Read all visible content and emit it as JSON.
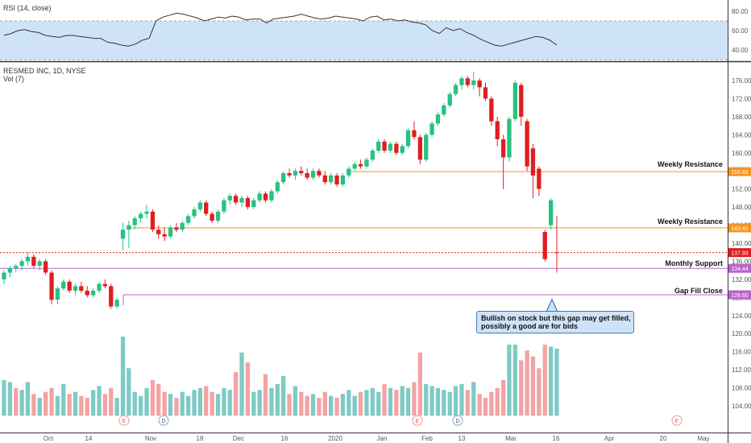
{
  "rsi_panel": {
    "title": "RSI (14, close)",
    "ticks": [
      "80.00",
      "60.00",
      "40.00"
    ],
    "tick_values": [
      80,
      60,
      40
    ],
    "ylim": [
      30,
      90
    ],
    "band": [
      30,
      70
    ],
    "band_color": "#cfe3f8",
    "line_color": "#333333",
    "values": [
      55,
      57,
      60,
      61,
      59,
      58,
      55,
      54,
      53,
      55,
      55,
      54,
      53,
      52,
      52,
      48,
      47,
      45,
      44,
      46,
      50,
      52,
      70,
      74,
      76,
      78,
      77,
      75,
      73,
      70,
      72,
      74,
      73,
      75,
      74,
      71,
      72,
      72,
      68,
      72,
      73,
      74,
      75,
      77,
      75,
      73,
      72,
      73,
      75,
      74,
      73,
      72,
      70,
      74,
      75,
      71,
      72,
      70,
      71,
      69,
      68,
      66,
      60,
      57,
      63,
      60,
      62,
      58,
      55,
      51,
      48,
      45,
      44,
      46,
      48,
      50,
      52,
      54,
      53,
      50,
      45
    ]
  },
  "main_panel": {
    "title": "RESMED INC, 1D, NYSE",
    "volume_label": "Vol (7)",
    "ticks": [
      "176.00",
      "172.00",
      "168.00",
      "164.00",
      "160.00",
      "156.00",
      "152.00",
      "148.00",
      "144.00",
      "140.00",
      "136.00",
      "132.00",
      "128.00",
      "124.00",
      "120.00",
      "116.00",
      "112.00",
      "108.00",
      "104.00"
    ],
    "tick_values": [
      176,
      172,
      168,
      164,
      160,
      156,
      152,
      148,
      144,
      140,
      136,
      132,
      128,
      124,
      120,
      116,
      112,
      108,
      104
    ],
    "ylim": [
      101.5,
      178.5
    ],
    "price_labels": [
      {
        "text": "155.85",
        "value": 155.85,
        "color": "#f7931e"
      },
      {
        "text": "143.40",
        "value": 143.4,
        "color": "#f7931e"
      },
      {
        "text": "137.93",
        "value": 137.93,
        "color": "#e21b1b"
      },
      {
        "text": "134.44",
        "value": 134.44,
        "color": "#b964c8"
      },
      {
        "text": "128.60",
        "value": 128.6,
        "color": "#b964c8"
      }
    ]
  },
  "x_axis": {
    "labels": [
      "Oct",
      "14",
      "Nov",
      "18",
      "Dec",
      "16",
      "2020",
      "Jan",
      "Feb",
      "13",
      "Mar",
      "16",
      "Apr",
      "20",
      "May"
    ]
  },
  "annotations": {
    "weekly_resistance_1": "Weekly Resistance",
    "weekly_resistance_2": "Weekly Resistance",
    "monthly_support": "Monthly Support",
    "gap_fill_close": "Gap Fill Close",
    "callout_line1": "Bullish on stock but this gap may get filled,",
    "callout_line2": "possibly a good are for bids"
  },
  "event_badges": [
    "E",
    "D",
    "E",
    "D",
    "E"
  ],
  "colors": {
    "up": "#26c281",
    "down": "#e01e1e",
    "vol_up": "#7ecac4",
    "vol_down": "#f3a3a3",
    "orange": "#f7931e",
    "purple": "#b964c8",
    "red_dotted": "#e21b1b"
  },
  "chart_data": {
    "type": "candlestick",
    "title": "RESMED INC, 1D, NYSE",
    "xlabel": "",
    "ylabel": "",
    "ylim": [
      101.5,
      178.5
    ],
    "horizontal_levels": [
      {
        "value": 155.85,
        "label": "Weekly Resistance"
      },
      {
        "value": 143.4,
        "label": "Weekly Resistance"
      },
      {
        "value": 137.93,
        "label": ""
      },
      {
        "value": 134.44,
        "label": "Monthly Support"
      },
      {
        "value": 128.6,
        "label": "Gap Fill Close"
      }
    ],
    "candles": [
      {
        "o": 132.0,
        "h": 134.0,
        "l": 131.0,
        "c": 133.5
      },
      {
        "o": 133.5,
        "h": 135.0,
        "l": 132.5,
        "c": 134.5
      },
      {
        "o": 134.5,
        "h": 135.5,
        "l": 133.5,
        "c": 135.0
      },
      {
        "o": 135.0,
        "h": 136.5,
        "l": 134.0,
        "c": 136.0
      },
      {
        "o": 136.0,
        "h": 138.0,
        "l": 135.0,
        "c": 137.0
      },
      {
        "o": 137.0,
        "h": 137.5,
        "l": 134.5,
        "c": 135.0
      },
      {
        "o": 135.0,
        "h": 136.5,
        "l": 134.0,
        "c": 136.0
      },
      {
        "o": 136.0,
        "h": 136.5,
        "l": 133.0,
        "c": 133.5
      },
      {
        "o": 133.5,
        "h": 134.0,
        "l": 126.5,
        "c": 127.5
      },
      {
        "o": 127.5,
        "h": 130.5,
        "l": 126.5,
        "c": 130.0
      },
      {
        "o": 130.0,
        "h": 132.0,
        "l": 129.5,
        "c": 131.5
      },
      {
        "o": 131.5,
        "h": 132.0,
        "l": 129.0,
        "c": 129.5
      },
      {
        "o": 129.5,
        "h": 131.0,
        "l": 128.5,
        "c": 130.5
      },
      {
        "o": 130.5,
        "h": 131.5,
        "l": 129.0,
        "c": 129.5
      },
      {
        "o": 129.5,
        "h": 130.5,
        "l": 128.0,
        "c": 128.5
      },
      {
        "o": 128.5,
        "h": 130.0,
        "l": 128.0,
        "c": 129.5
      },
      {
        "o": 129.5,
        "h": 131.5,
        "l": 129.0,
        "c": 131.0
      },
      {
        "o": 131.0,
        "h": 132.0,
        "l": 130.0,
        "c": 130.5
      },
      {
        "o": 130.5,
        "h": 131.0,
        "l": 125.5,
        "c": 126.0
      },
      {
        "o": 126.0,
        "h": 128.0,
        "l": 125.5,
        "c": 127.5
      },
      {
        "o": 141.0,
        "h": 144.5,
        "l": 138.5,
        "c": 143.0
      },
      {
        "o": 143.0,
        "h": 145.0,
        "l": 139.0,
        "c": 144.0
      },
      {
        "o": 144.0,
        "h": 146.0,
        "l": 143.0,
        "c": 145.5
      },
      {
        "o": 145.5,
        "h": 147.0,
        "l": 144.5,
        "c": 146.5
      },
      {
        "o": 146.5,
        "h": 148.5,
        "l": 145.5,
        "c": 147.0
      },
      {
        "o": 147.0,
        "h": 147.5,
        "l": 142.5,
        "c": 143.0
      },
      {
        "o": 143.0,
        "h": 144.0,
        "l": 141.0,
        "c": 142.0
      },
      {
        "o": 142.0,
        "h": 143.5,
        "l": 140.5,
        "c": 141.5
      },
      {
        "o": 141.5,
        "h": 144.0,
        "l": 141.0,
        "c": 143.5
      },
      {
        "o": 143.5,
        "h": 144.5,
        "l": 142.5,
        "c": 143.0
      },
      {
        "o": 143.0,
        "h": 145.0,
        "l": 142.5,
        "c": 144.5
      },
      {
        "o": 144.5,
        "h": 146.5,
        "l": 144.0,
        "c": 146.0
      },
      {
        "o": 146.0,
        "h": 148.0,
        "l": 145.5,
        "c": 147.5
      },
      {
        "o": 147.5,
        "h": 149.5,
        "l": 147.0,
        "c": 149.0
      },
      {
        "o": 149.0,
        "h": 149.5,
        "l": 146.0,
        "c": 146.5
      },
      {
        "o": 146.5,
        "h": 147.0,
        "l": 144.5,
        "c": 145.0
      },
      {
        "o": 145.0,
        "h": 147.5,
        "l": 144.5,
        "c": 147.0
      },
      {
        "o": 147.0,
        "h": 150.0,
        "l": 146.5,
        "c": 149.5
      },
      {
        "o": 149.5,
        "h": 151.0,
        "l": 148.5,
        "c": 150.5
      },
      {
        "o": 150.5,
        "h": 151.0,
        "l": 148.5,
        "c": 149.0
      },
      {
        "o": 149.0,
        "h": 150.5,
        "l": 148.0,
        "c": 150.0
      },
      {
        "o": 150.0,
        "h": 150.5,
        "l": 147.5,
        "c": 148.0
      },
      {
        "o": 148.0,
        "h": 150.0,
        "l": 147.5,
        "c": 149.5
      },
      {
        "o": 149.5,
        "h": 151.5,
        "l": 149.0,
        "c": 151.0
      },
      {
        "o": 151.0,
        "h": 151.5,
        "l": 149.0,
        "c": 149.5
      },
      {
        "o": 149.5,
        "h": 152.0,
        "l": 149.0,
        "c": 151.5
      },
      {
        "o": 151.5,
        "h": 154.0,
        "l": 151.0,
        "c": 153.5
      },
      {
        "o": 153.5,
        "h": 156.0,
        "l": 153.0,
        "c": 155.5
      },
      {
        "o": 155.5,
        "h": 156.5,
        "l": 154.5,
        "c": 155.0
      },
      {
        "o": 155.0,
        "h": 156.5,
        "l": 154.0,
        "c": 156.0
      },
      {
        "o": 156.0,
        "h": 157.0,
        "l": 155.0,
        "c": 155.5
      },
      {
        "o": 155.5,
        "h": 156.5,
        "l": 154.0,
        "c": 154.5
      },
      {
        "o": 154.5,
        "h": 156.5,
        "l": 154.0,
        "c": 156.0
      },
      {
        "o": 156.0,
        "h": 156.5,
        "l": 154.5,
        "c": 155.0
      },
      {
        "o": 155.0,
        "h": 156.0,
        "l": 153.0,
        "c": 153.5
      },
      {
        "o": 153.5,
        "h": 155.5,
        "l": 153.0,
        "c": 155.0
      },
      {
        "o": 155.0,
        "h": 155.5,
        "l": 152.5,
        "c": 153.0
      },
      {
        "o": 153.0,
        "h": 155.5,
        "l": 152.5,
        "c": 155.0
      },
      {
        "o": 155.0,
        "h": 157.0,
        "l": 154.5,
        "c": 156.5
      },
      {
        "o": 156.5,
        "h": 158.0,
        "l": 156.0,
        "c": 157.5
      },
      {
        "o": 157.5,
        "h": 158.5,
        "l": 156.5,
        "c": 157.0
      },
      {
        "o": 157.0,
        "h": 159.0,
        "l": 156.5,
        "c": 158.5
      },
      {
        "o": 158.5,
        "h": 161.0,
        "l": 158.0,
        "c": 160.5
      },
      {
        "o": 160.5,
        "h": 163.0,
        "l": 160.0,
        "c": 162.5
      },
      {
        "o": 162.5,
        "h": 163.0,
        "l": 160.0,
        "c": 160.5
      },
      {
        "o": 160.5,
        "h": 162.5,
        "l": 160.0,
        "c": 162.0
      },
      {
        "o": 162.0,
        "h": 162.5,
        "l": 159.5,
        "c": 160.0
      },
      {
        "o": 160.0,
        "h": 162.0,
        "l": 159.5,
        "c": 161.5
      },
      {
        "o": 161.5,
        "h": 165.5,
        "l": 161.0,
        "c": 165.0
      },
      {
        "o": 165.0,
        "h": 167.0,
        "l": 163.0,
        "c": 163.5
      },
      {
        "o": 163.5,
        "h": 164.0,
        "l": 157.5,
        "c": 158.5
      },
      {
        "o": 158.5,
        "h": 164.5,
        "l": 158.0,
        "c": 164.0
      },
      {
        "o": 164.0,
        "h": 167.0,
        "l": 163.5,
        "c": 166.5
      },
      {
        "o": 166.5,
        "h": 169.0,
        "l": 166.0,
        "c": 168.5
      },
      {
        "o": 168.5,
        "h": 171.0,
        "l": 168.0,
        "c": 170.5
      },
      {
        "o": 170.5,
        "h": 173.5,
        "l": 170.0,
        "c": 173.0
      },
      {
        "o": 173.0,
        "h": 175.5,
        "l": 172.5,
        "c": 175.0
      },
      {
        "o": 175.0,
        "h": 177.0,
        "l": 174.0,
        "c": 176.5
      },
      {
        "o": 176.5,
        "h": 177.0,
        "l": 174.5,
        "c": 175.0
      },
      {
        "o": 175.0,
        "h": 178.0,
        "l": 174.0,
        "c": 176.0
      },
      {
        "o": 176.0,
        "h": 176.5,
        "l": 172.5,
        "c": 174.5
      },
      {
        "o": 174.5,
        "h": 175.5,
        "l": 171.5,
        "c": 172.0
      },
      {
        "o": 172.0,
        "h": 172.5,
        "l": 166.0,
        "c": 167.0
      },
      {
        "o": 167.0,
        "h": 168.0,
        "l": 161.5,
        "c": 163.0
      },
      {
        "o": 163.0,
        "h": 164.0,
        "l": 152.0,
        "c": 159.0
      },
      {
        "o": 159.0,
        "h": 168.0,
        "l": 158.0,
        "c": 167.5
      },
      {
        "o": 167.5,
        "h": 176.0,
        "l": 167.0,
        "c": 175.5
      },
      {
        "o": 175.0,
        "h": 175.5,
        "l": 166.0,
        "c": 168.0
      },
      {
        "o": 167.0,
        "h": 167.5,
        "l": 156.0,
        "c": 157.0
      },
      {
        "o": 161.0,
        "h": 162.0,
        "l": 150.0,
        "c": 155.0
      },
      {
        "o": 156.5,
        "h": 157.0,
        "l": 150.5,
        "c": 152.0
      },
      {
        "o": 142.5,
        "h": 143.0,
        "l": 136.0,
        "c": 136.5
      },
      {
        "o": 144.0,
        "h": 150.0,
        "l": 143.0,
        "c": 149.5
      },
      {
        "o": 138.0,
        "h": 146.0,
        "l": 133.5,
        "c": 137.93
      }
    ],
    "volume": [
      {
        "v": 18,
        "up": true
      },
      {
        "v": 17,
        "up": true
      },
      {
        "v": 14,
        "up": false
      },
      {
        "v": 13,
        "up": true
      },
      {
        "v": 17,
        "up": true
      },
      {
        "v": 11,
        "up": false
      },
      {
        "v": 9,
        "up": true
      },
      {
        "v": 12,
        "up": false
      },
      {
        "v": 14,
        "up": false
      },
      {
        "v": 10,
        "up": true
      },
      {
        "v": 16,
        "up": true
      },
      {
        "v": 11,
        "up": false
      },
      {
        "v": 12,
        "up": true
      },
      {
        "v": 10,
        "up": false
      },
      {
        "v": 9,
        "up": false
      },
      {
        "v": 13,
        "up": true
      },
      {
        "v": 15,
        "up": true
      },
      {
        "v": 11,
        "up": false
      },
      {
        "v": 14,
        "up": false
      },
      {
        "v": 9,
        "up": true
      },
      {
        "v": 40,
        "up": true
      },
      {
        "v": 24,
        "up": true
      },
      {
        "v": 12,
        "up": true
      },
      {
        "v": 10,
        "up": true
      },
      {
        "v": 14,
        "up": true
      },
      {
        "v": 18,
        "up": false
      },
      {
        "v": 16,
        "up": false
      },
      {
        "v": 12,
        "up": false
      },
      {
        "v": 11,
        "up": true
      },
      {
        "v": 9,
        "up": false
      },
      {
        "v": 12,
        "up": true
      },
      {
        "v": 10,
        "up": true
      },
      {
        "v": 13,
        "up": true
      },
      {
        "v": 14,
        "up": true
      },
      {
        "v": 15,
        "up": false
      },
      {
        "v": 12,
        "up": false
      },
      {
        "v": 11,
        "up": true
      },
      {
        "v": 14,
        "up": true
      },
      {
        "v": 13,
        "up": true
      },
      {
        "v": 22,
        "up": false
      },
      {
        "v": 32,
        "up": true
      },
      {
        "v": 27,
        "up": false
      },
      {
        "v": 12,
        "up": true
      },
      {
        "v": 13,
        "up": true
      },
      {
        "v": 21,
        "up": false
      },
      {
        "v": 14,
        "up": true
      },
      {
        "v": 16,
        "up": true
      },
      {
        "v": 20,
        "up": true
      },
      {
        "v": 11,
        "up": false
      },
      {
        "v": 15,
        "up": true
      },
      {
        "v": 12,
        "up": false
      },
      {
        "v": 10,
        "up": false
      },
      {
        "v": 11,
        "up": true
      },
      {
        "v": 9,
        "up": false
      },
      {
        "v": 12,
        "up": false
      },
      {
        "v": 10,
        "up": true
      },
      {
        "v": 9,
        "up": false
      },
      {
        "v": 11,
        "up": true
      },
      {
        "v": 13,
        "up": true
      },
      {
        "v": 10,
        "up": true
      },
      {
        "v": 12,
        "up": false
      },
      {
        "v": 13,
        "up": true
      },
      {
        "v": 14,
        "up": true
      },
      {
        "v": 12,
        "up": true
      },
      {
        "v": 16,
        "up": false
      },
      {
        "v": 14,
        "up": true
      },
      {
        "v": 13,
        "up": false
      },
      {
        "v": 15,
        "up": true
      },
      {
        "v": 14,
        "up": true
      },
      {
        "v": 17,
        "up": false
      },
      {
        "v": 32,
        "up": false
      },
      {
        "v": 16,
        "up": true
      },
      {
        "v": 15,
        "up": true
      },
      {
        "v": 14,
        "up": true
      },
      {
        "v": 13,
        "up": true
      },
      {
        "v": 12,
        "up": true
      },
      {
        "v": 15,
        "up": true
      },
      {
        "v": 16,
        "up": true
      },
      {
        "v": 13,
        "up": false
      },
      {
        "v": 17,
        "up": true
      },
      {
        "v": 11,
        "up": false
      },
      {
        "v": 9,
        "up": false
      },
      {
        "v": 12,
        "up": false
      },
      {
        "v": 14,
        "up": false
      },
      {
        "v": 18,
        "up": false
      },
      {
        "v": 36,
        "up": true
      },
      {
        "v": 36,
        "up": true
      },
      {
        "v": 28,
        "up": false
      },
      {
        "v": 33,
        "up": false
      },
      {
        "v": 30,
        "up": false
      },
      {
        "v": 24,
        "up": false
      },
      {
        "v": 36,
        "up": false
      },
      {
        "v": 35,
        "up": true
      },
      {
        "v": 34,
        "up": true
      }
    ]
  }
}
